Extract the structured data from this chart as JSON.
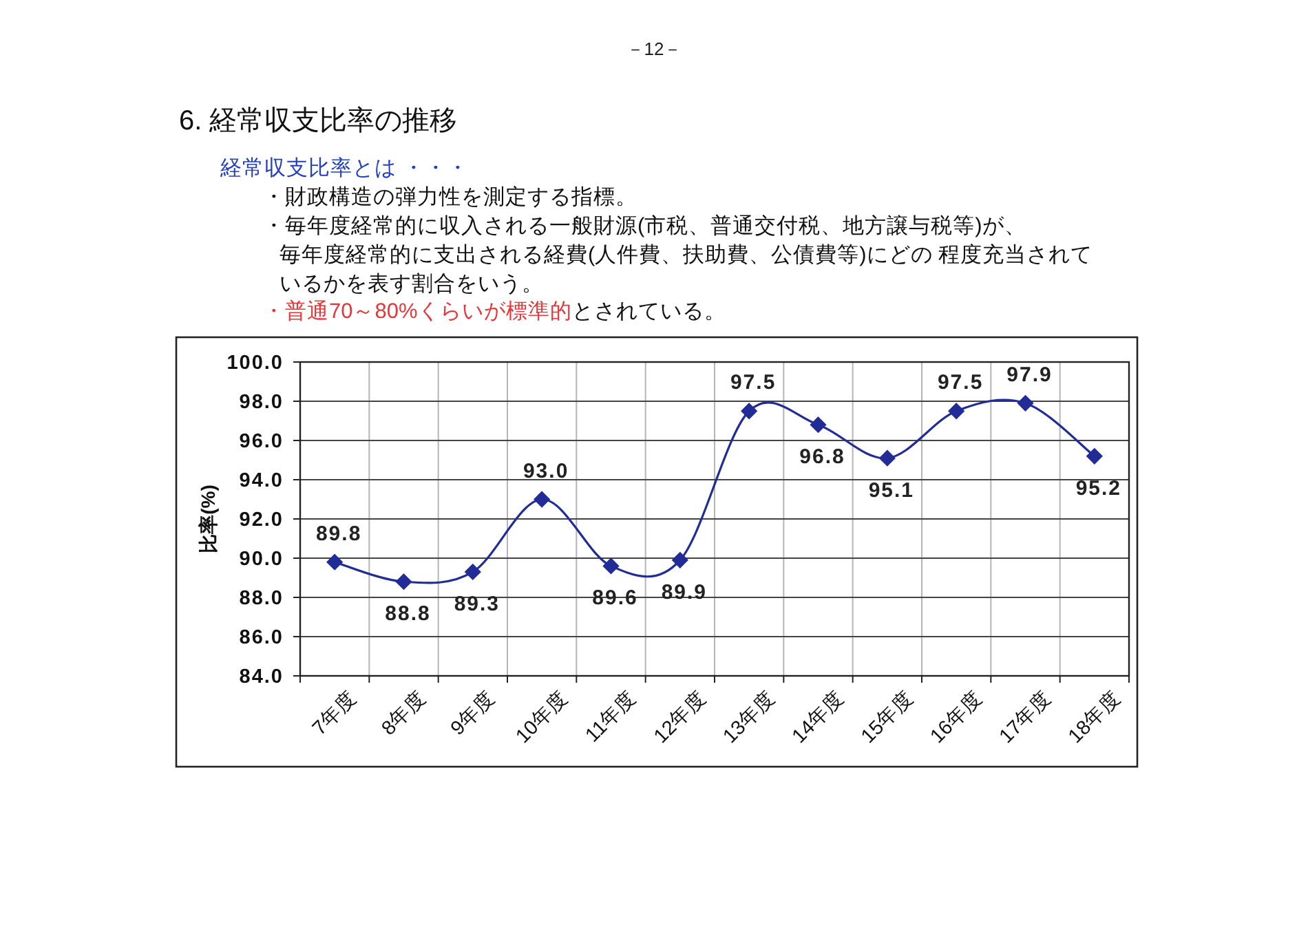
{
  "chart_data": {
    "type": "line",
    "title": "6. 経常収支比率の推移",
    "subtitle": "経常収支比率とは ・・・",
    "ylabel": "比率(%)",
    "categories": [
      "7年度",
      "8年度",
      "9年度",
      "10年度",
      "11年度",
      "12年度",
      "13年度",
      "14年度",
      "15年度",
      "16年度",
      "17年度",
      "18年度"
    ],
    "series": [
      {
        "color": "#222c96",
        "values": [
          89.8,
          88.8,
          89.3,
          93.0,
          89.6,
          89.9,
          97.5,
          96.8,
          95.1,
          97.5,
          97.9,
          95.2
        ],
        "value_labels": [
          "89.8",
          "88.8",
          "89.3",
          "93.0",
          "89.6",
          "89.9",
          "97.5",
          "96.8",
          "95.1",
          "97.5",
          "97.9",
          "95.2"
        ]
      }
    ],
    "ylim": [
      84,
      100
    ],
    "yticks": [
      {
        "value": 84,
        "label": "84.0"
      },
      {
        "value": 86,
        "label": "86.0"
      },
      {
        "value": 88,
        "label": "88.0"
      },
      {
        "value": 90,
        "label": "90.0"
      },
      {
        "value": 92,
        "label": "92.0"
      },
      {
        "value": 94,
        "label": "94.0"
      },
      {
        "value": 96,
        "label": "96.0"
      },
      {
        "value": 98,
        "label": "98.0"
      },
      {
        "value": 100,
        "label": "100.0"
      }
    ],
    "grid": true,
    "marker": "diamond",
    "line_style": "solid",
    "annotations": [
      "－12－",
      "・財政構造の弾力性を測定する指標。",
      "・毎年度経常的に収入される一般財源(市税、普通交付税、地方譲与税等)が、",
      "毎年度経常的に支出される経費(人件費、扶助費、公債費等)にどの 程度充当されて",
      "いるかを表す割合をいう。",
      "・普通70～80%くらいが標準的",
      "とされている。"
    ]
  }
}
